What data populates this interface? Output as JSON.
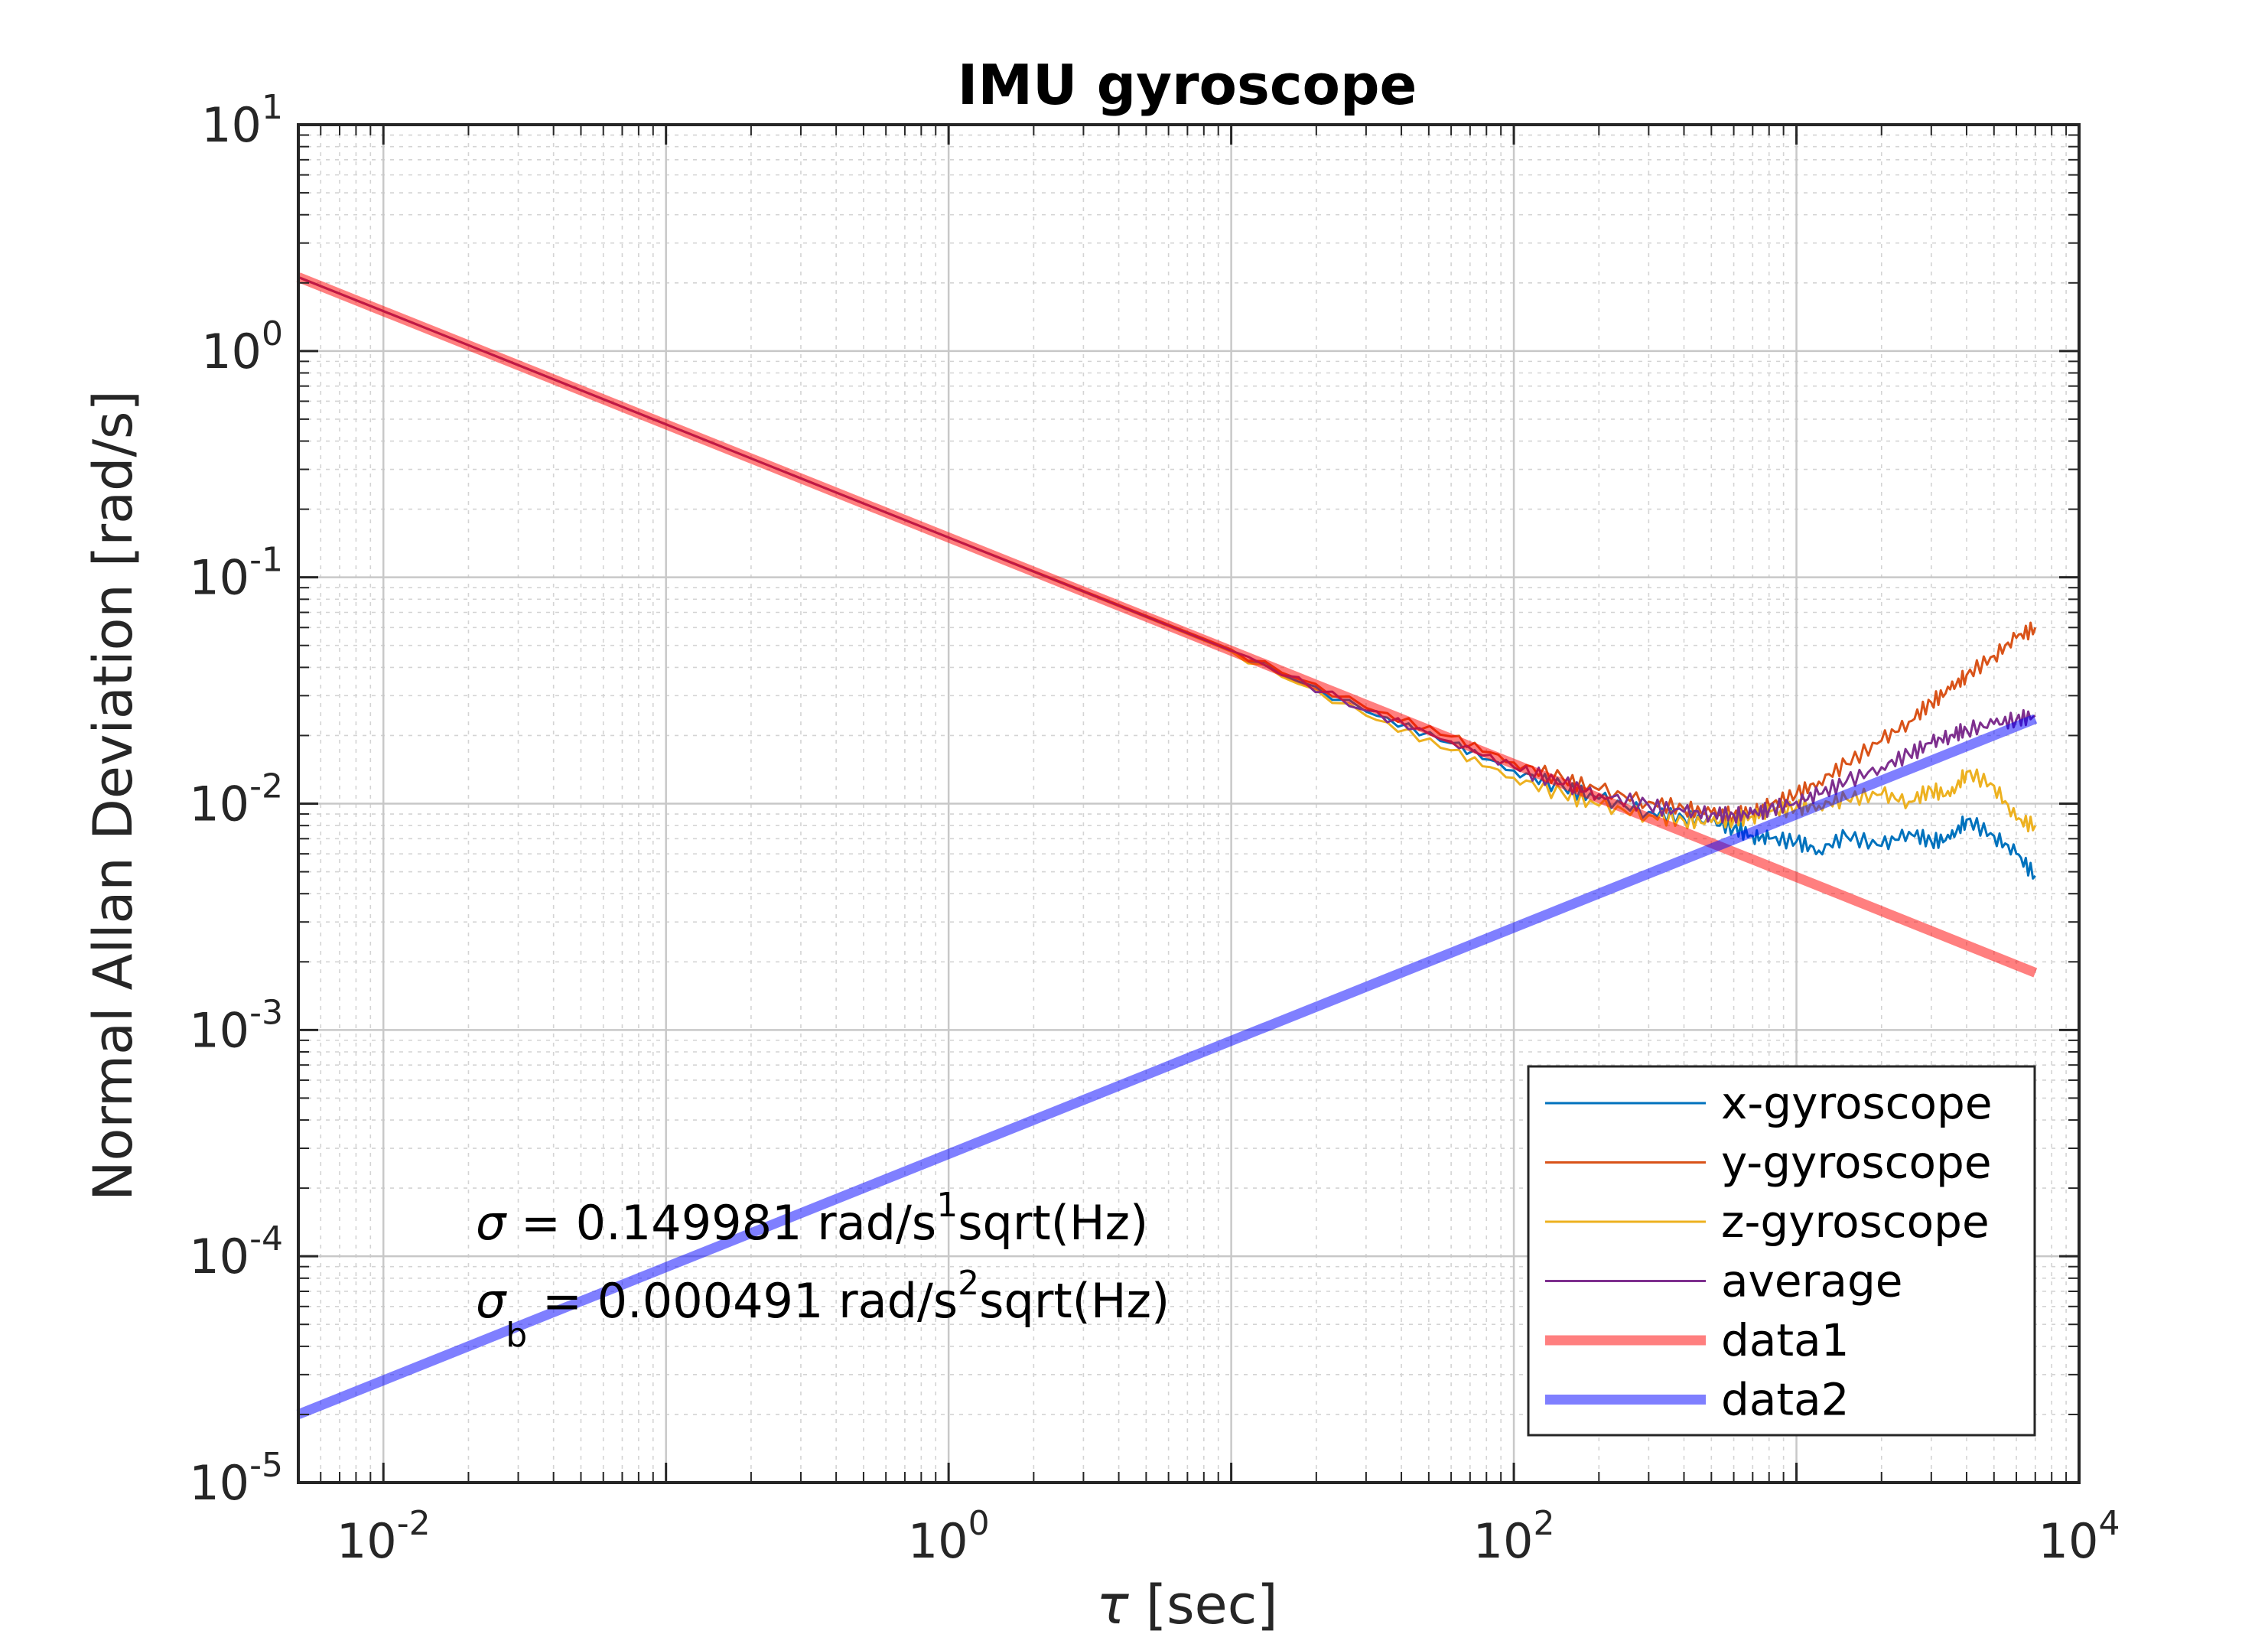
{
  "chart_data": {
    "type": "line",
    "title": "IMU gyroscope",
    "xlabel_symbol": "τ",
    "xlabel_unit": "[sec]",
    "ylabel": "Normal Allan Deviation [rad/s]",
    "xscale": "log",
    "yscale": "log",
    "xlim": [
      0.005,
      10000
    ],
    "ylim": [
      1e-05,
      10
    ],
    "x_ticks": [
      {
        "base": "10",
        "exp": "-2",
        "value": 0.01
      },
      {
        "base": "10",
        "exp": "0",
        "value": 1
      },
      {
        "base": "10",
        "exp": "2",
        "value": 100
      },
      {
        "base": "10",
        "exp": "4",
        "value": 10000
      }
    ],
    "y_ticks": [
      {
        "base": "10",
        "exp": "1",
        "value": 10
      },
      {
        "base": "10",
        "exp": "0",
        "value": 1
      },
      {
        "base": "10",
        "exp": "-1",
        "value": 0.1
      },
      {
        "base": "10",
        "exp": "-2",
        "value": 0.01
      },
      {
        "base": "10",
        "exp": "-3",
        "value": 0.001
      },
      {
        "base": "10",
        "exp": "-4",
        "value": 0.0001
      },
      {
        "base": "10",
        "exp": "-5",
        "value": 1e-05
      }
    ],
    "grid": true,
    "minor_grid": true,
    "legend_position": "bottom-right",
    "series": [
      {
        "name": "x-gyroscope",
        "color": "#0072BD",
        "style": "thin",
        "x": [
          0.005,
          0.01,
          0.1,
          1,
          10,
          30,
          60,
          100,
          150,
          200,
          300,
          400,
          500,
          600,
          700,
          800,
          1000,
          1200,
          1500,
          2000,
          2500,
          3000,
          3500,
          4000,
          5000,
          6000,
          7000
        ],
        "y": [
          2.12,
          1.5,
          0.474,
          0.15,
          0.0474,
          0.0255,
          0.0185,
          0.014,
          0.0118,
          0.0105,
          0.0092,
          0.0086,
          0.0083,
          0.0078,
          0.0072,
          0.007,
          0.0068,
          0.0062,
          0.0072,
          0.0065,
          0.0075,
          0.0068,
          0.007,
          0.0085,
          0.0072,
          0.006,
          0.0048
        ]
      },
      {
        "name": "y-gyroscope",
        "color": "#D95319",
        "style": "thin",
        "x": [
          0.005,
          0.01,
          0.1,
          1,
          10,
          30,
          60,
          100,
          150,
          200,
          300,
          400,
          500,
          600,
          700,
          800,
          1000,
          1200,
          1500,
          2000,
          2500,
          3000,
          3500,
          4000,
          5000,
          6000,
          7000
        ],
        "y": [
          2.12,
          1.5,
          0.474,
          0.15,
          0.048,
          0.0265,
          0.0198,
          0.0152,
          0.0128,
          0.0115,
          0.0102,
          0.0095,
          0.0091,
          0.0089,
          0.0092,
          0.0098,
          0.011,
          0.0125,
          0.015,
          0.019,
          0.023,
          0.028,
          0.032,
          0.037,
          0.045,
          0.054,
          0.06
        ]
      },
      {
        "name": "z-gyroscope",
        "color": "#EDB120",
        "style": "thin",
        "x": [
          0.005,
          0.01,
          0.1,
          1,
          10,
          30,
          60,
          100,
          150,
          200,
          300,
          400,
          500,
          600,
          700,
          800,
          1000,
          1200,
          1500,
          2000,
          2500,
          3000,
          3500,
          4000,
          5000,
          6000,
          7000
        ],
        "y": [
          2.12,
          1.5,
          0.474,
          0.15,
          0.047,
          0.0245,
          0.0172,
          0.013,
          0.011,
          0.0098,
          0.0089,
          0.0084,
          0.0083,
          0.0085,
          0.0088,
          0.0092,
          0.0096,
          0.0098,
          0.0105,
          0.011,
          0.0102,
          0.0115,
          0.0108,
          0.0138,
          0.012,
          0.0085,
          0.008
        ]
      },
      {
        "name": "average",
        "color": "#7E2F8E",
        "style": "thin",
        "x": [
          0.005,
          0.01,
          0.1,
          1,
          10,
          30,
          60,
          100,
          150,
          200,
          300,
          400,
          500,
          600,
          700,
          800,
          1000,
          1200,
          1500,
          2000,
          2500,
          3000,
          3500,
          4000,
          5000,
          6000,
          7000
        ],
        "y": [
          2.12,
          1.5,
          0.474,
          0.15,
          0.0474,
          0.0258,
          0.0188,
          0.0145,
          0.0122,
          0.011,
          0.0098,
          0.0092,
          0.009,
          0.0089,
          0.009,
          0.0094,
          0.0102,
          0.011,
          0.0125,
          0.0145,
          0.0165,
          0.0185,
          0.02,
          0.0212,
          0.0225,
          0.0235,
          0.0245
        ]
      },
      {
        "name": "data1",
        "color": "#FF0000",
        "opacity": 0.5,
        "style": "thick",
        "x": [
          0.005,
          7000
        ],
        "y": [
          2.12,
          0.00179
        ]
      },
      {
        "name": "data2",
        "color": "#0000FF",
        "opacity": 0.5,
        "style": "thick",
        "x": [
          0.005,
          7000
        ],
        "y": [
          2e-05,
          0.0237
        ]
      }
    ],
    "annotations": [
      {
        "symbol": "σ",
        "sub": "",
        "text": " = 0.149981 rad/s",
        "sup": "1",
        "tail": "sqrt(Hz)"
      },
      {
        "symbol": "σ",
        "sub": "b",
        "text": " = 0.000491 rad/s",
        "sup": "2",
        "tail": "sqrt(Hz)"
      }
    ]
  }
}
